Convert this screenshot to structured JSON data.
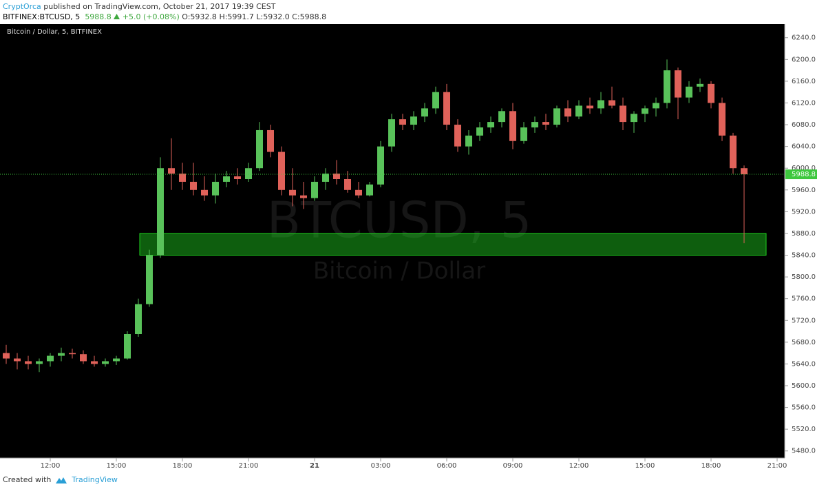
{
  "header": {
    "author": "CryptOrca",
    "published": "published on TradingView.com, October 21, 2017 19:39 CEST",
    "symbol": "BITFINEX:BTCUSD, 5",
    "price": "5988.8",
    "change": "+5.0 (+0.08%)",
    "ohlc": [
      "O:5932.8",
      "H:5991.7",
      "L:5932.0",
      "C:5988.8"
    ]
  },
  "footer": {
    "created": "Created with",
    "brand": "TradingView"
  },
  "chart_data": {
    "type": "candlestick",
    "label": "Bitcoin / Dollar, 5, BITFINEX",
    "watermark": "BTCUSD, 5",
    "watermark_sub": "Bitcoin / Dollar",
    "up_color": "#59c25a",
    "down_color": "#e0625a",
    "grid": false,
    "categories": [
      null,
      null,
      null,
      null,
      "12:00",
      null,
      null,
      null,
      null,
      null,
      "15:00",
      null,
      null,
      null,
      null,
      null,
      "18:00",
      null,
      null,
      null,
      null,
      null,
      "21:00",
      null,
      null,
      null,
      null,
      null,
      "21",
      null,
      null,
      null,
      null,
      null,
      "03:00",
      null,
      null,
      null,
      null,
      null,
      "06:00",
      null,
      null,
      null,
      null,
      null,
      "09:00",
      null,
      null,
      null,
      null,
      null,
      "12:00",
      null,
      null,
      null,
      null,
      null,
      "15:00",
      null,
      null,
      null,
      null,
      null,
      "18:00",
      null,
      null,
      null,
      null,
      null,
      "21:00"
    ],
    "open": [
      5660,
      5650,
      5645,
      5640,
      5645,
      5655,
      5660,
      5658,
      5645,
      5640,
      5645,
      5650,
      5695,
      5750,
      5840,
      6000,
      5990,
      5975,
      5960,
      5950,
      5975,
      5985,
      5980,
      6000,
      6070,
      6030,
      5960,
      5950,
      5945,
      5975,
      5990,
      5980,
      5960,
      5950,
      5970,
      6040,
      6090,
      6080,
      6095,
      6110,
      6140,
      6080,
      6040,
      6060,
      6075,
      6085,
      6105,
      6050,
      6075,
      6085,
      6080,
      6110,
      6095,
      6115,
      6110,
      6125,
      6115,
      6085,
      6100,
      6110,
      6120,
      6180,
      6130,
      6150,
      6155,
      6120,
      6060,
      6000,
      null,
      null,
      null
    ],
    "high": [
      5675,
      5660,
      5655,
      5650,
      5660,
      5670,
      5668,
      5665,
      5655,
      5650,
      5655,
      5700,
      5760,
      5850,
      6020,
      6055,
      6010,
      6010,
      5985,
      5990,
      5995,
      6000,
      6010,
      6085,
      6080,
      6040,
      6000,
      5975,
      5985,
      6000,
      6015,
      5995,
      5975,
      5975,
      6050,
      6100,
      6100,
      6105,
      6120,
      6150,
      6155,
      6090,
      6070,
      6085,
      6095,
      6110,
      6120,
      6085,
      6095,
      6100,
      6115,
      6125,
      6125,
      6130,
      6140,
      6150,
      6130,
      6105,
      6115,
      6130,
      6200,
      6185,
      6160,
      6165,
      6160,
      6130,
      6065,
      6005,
      null,
      null,
      null
    ],
    "low": [
      5640,
      5630,
      5630,
      5625,
      5635,
      5645,
      5650,
      5640,
      5635,
      5635,
      5638,
      5648,
      5690,
      5745,
      5835,
      5960,
      5960,
      5950,
      5940,
      5935,
      5965,
      5970,
      5975,
      5995,
      6020,
      5950,
      5930,
      5925,
      5940,
      5960,
      5970,
      5955,
      5945,
      5948,
      5965,
      6030,
      6070,
      6070,
      6085,
      6100,
      6070,
      6030,
      6025,
      6050,
      6065,
      6075,
      6035,
      6045,
      6065,
      6070,
      6075,
      6085,
      6090,
      6100,
      6100,
      6110,
      6070,
      6065,
      6085,
      6095,
      6110,
      6090,
      6120,
      6140,
      6110,
      6050,
      5990,
      5862,
      null,
      null,
      null
    ],
    "close": [
      5650,
      5645,
      5640,
      5645,
      5655,
      5660,
      5658,
      5645,
      5640,
      5645,
      5650,
      5695,
      5750,
      5840,
      6000,
      5990,
      5975,
      5960,
      5950,
      5975,
      5985,
      5980,
      6000,
      6070,
      6030,
      5960,
      5950,
      5945,
      5975,
      5990,
      5980,
      5960,
      5950,
      5970,
      6040,
      6090,
      6080,
      6095,
      6110,
      6140,
      6080,
      6040,
      6060,
      6075,
      6085,
      6105,
      6050,
      6075,
      6085,
      6080,
      6110,
      6095,
      6115,
      6110,
      6125,
      6115,
      6085,
      6100,
      6110,
      6120,
      6180,
      6130,
      6150,
      6155,
      6120,
      6060,
      6000,
      5988.8,
      null,
      null,
      null
    ],
    "last_price": 5988.8,
    "last_price_color": "#3ec83e",
    "zone": {
      "low": 5840,
      "high": 5880,
      "color": "#1fd11f"
    },
    "ylim": [
      5467,
      6265
    ],
    "yticks": [
      {
        "value": 5480,
        "label": "5480.0"
      },
      {
        "value": 5520,
        "label": "5520.0"
      },
      {
        "value": 5560,
        "label": "5560.0"
      },
      {
        "value": 5600,
        "label": "5600.0"
      },
      {
        "value": 5640,
        "label": "5640.0"
      },
      {
        "value": 5680,
        "label": "5680.0"
      },
      {
        "value": 5720,
        "label": "5720.0"
      },
      {
        "value": 5760,
        "label": "5760.0"
      },
      {
        "value": 5800,
        "label": "5800.0"
      },
      {
        "value": 5840,
        "label": "5840.0"
      },
      {
        "value": 5880,
        "label": "5880.0"
      },
      {
        "value": 5920,
        "label": "5920.0"
      },
      {
        "value": 5960,
        "label": "5960.0"
      },
      {
        "value": 6000,
        "label": "6000.0"
      },
      {
        "value": 6040,
        "label": "6040.0"
      },
      {
        "value": 6080,
        "label": "6080.0"
      },
      {
        "value": 6120,
        "label": "6120.0"
      },
      {
        "value": 6160,
        "label": "6160.0"
      },
      {
        "value": 6200,
        "label": "6200.0"
      },
      {
        "value": 6240,
        "label": "6240.0"
      }
    ]
  }
}
